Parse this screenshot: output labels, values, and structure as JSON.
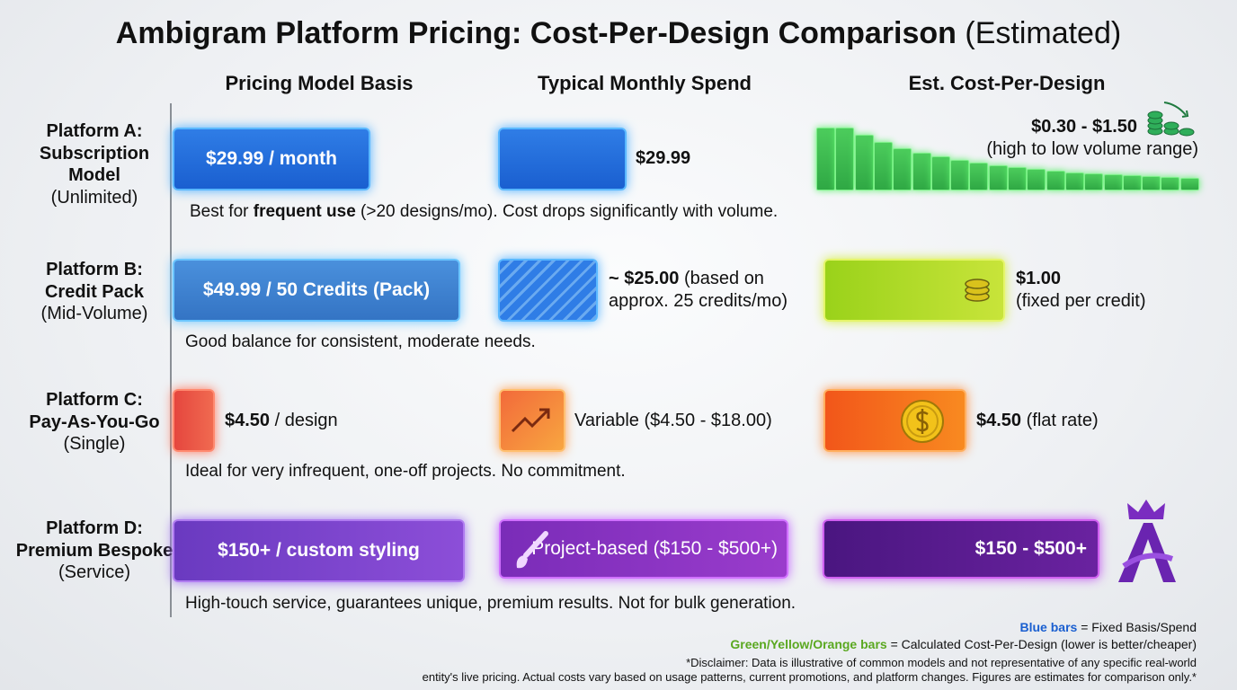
{
  "title": {
    "main": "Ambigram Platform Pricing: Cost-Per-Design Comparison",
    "suffix": "(Estimated)"
  },
  "columns": [
    "Pricing Model Basis",
    "Typical Monthly Spend",
    "Est. Cost-Per-Design"
  ],
  "rows": [
    {
      "label": [
        "Platform A:",
        "Subscription",
        "Model"
      ],
      "sublabel": "(Unlimited)",
      "basis": {
        "text": "$29.99 / month"
      },
      "spend": {
        "bold": "$29.99"
      },
      "cost": {
        "bold": "$0.30 - $1.50",
        "text": "(high to low volume range)"
      },
      "note": [
        "Best for ",
        "frequent use",
        " (>20 designs/mo). Cost drops significantly with volume."
      ]
    },
    {
      "label": [
        "Platform B:",
        "Credit Pack"
      ],
      "sublabel": "(Mid-Volume)",
      "basis": {
        "text": "$49.99 / 50 Credits (Pack)"
      },
      "spend": {
        "bold": "~ $25.00",
        "text": " (based on",
        "text2": "approx. 25 credits/mo)"
      },
      "cost": {
        "bold": "$1.00",
        "text": "(fixed per credit)"
      },
      "note": [
        "Good balance for consistent, moderate needs."
      ]
    },
    {
      "label": [
        "Platform C:",
        "Pay-As-You-Go"
      ],
      "sublabel": "(Single)",
      "basis": {
        "bold": "$4.50",
        "text": " / design"
      },
      "spend": {
        "text": "Variable ($4.50 - $18.00)"
      },
      "cost": {
        "bold": "$4.50",
        "text": " (flat rate)"
      },
      "note": [
        "Ideal for very infrequent, one-off projects. No commitment."
      ]
    },
    {
      "label": [
        "Platform D:",
        "Premium Bespoke"
      ],
      "sublabel": "(Service)",
      "basis": {
        "text": "$150+ / custom styling"
      },
      "spend": {
        "text": "Project-based ($150 - $500+)"
      },
      "cost": {
        "text": "$150 - $500+"
      },
      "note": [
        "High-touch service, guarantees unique, premium results. Not for bulk generation."
      ]
    }
  ],
  "legend": [
    {
      "key": "Blue bars",
      "text": " = Fixed Basis/Spend"
    },
    {
      "key": "Green/Yellow/Orange bars",
      "text": " = Calculated Cost-Per-Design (lower is better/cheaper)"
    }
  ],
  "disclaimer": [
    "*Disclaimer: Data is illustrative of common models and not representative of any specific real-world",
    "entity's live pricing. Actual costs vary based on usage patterns, current promotions, and platform changes. Figures are estimates for comparison only.*"
  ]
}
